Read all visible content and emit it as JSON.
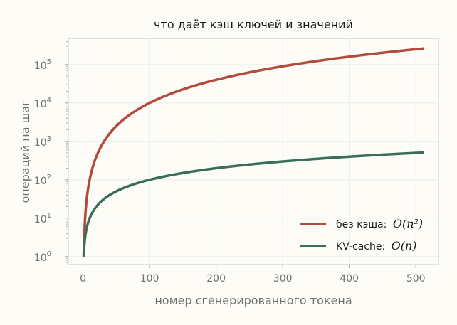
{
  "chart_data": {
    "type": "line",
    "title": "что даёт кэш ключей и значений",
    "xlabel": "номер сгенерированного токена",
    "ylabel": "операций на шаг",
    "xlim": [
      -22,
      534
    ],
    "ylim": [
      0.62,
      480000
    ],
    "yscale": "log",
    "grid": true,
    "legend_position": "bottom-right",
    "x_ticks": [
      {
        "value": 0,
        "label": "0"
      },
      {
        "value": 100,
        "label": "100"
      },
      {
        "value": 200,
        "label": "200"
      },
      {
        "value": 300,
        "label": "300"
      },
      {
        "value": 400,
        "label": "400"
      },
      {
        "value": 500,
        "label": "500"
      }
    ],
    "y_ticks": [
      {
        "value": 1,
        "base": "10",
        "exp": "0"
      },
      {
        "value": 10,
        "base": "10",
        "exp": "1"
      },
      {
        "value": 100,
        "base": "10",
        "exp": "2"
      },
      {
        "value": 1000,
        "base": "10",
        "exp": "3"
      },
      {
        "value": 10000,
        "base": "10",
        "exp": "4"
      },
      {
        "value": 100000,
        "base": "10",
        "exp": "5"
      }
    ],
    "x_range": [
      1,
      512
    ],
    "series": [
      {
        "name": "без кэша:",
        "formula": "O(n²)",
        "exponent": 2,
        "color": "#b34a3c"
      },
      {
        "name": "KV-cache:",
        "formula": "O(n)",
        "exponent": 1,
        "color": "#3a6e5a"
      }
    ]
  },
  "colors": {
    "background": "#fdfcf7",
    "axes_border": "#c8c8c8",
    "grid": "#ececec",
    "text": "#707070"
  }
}
